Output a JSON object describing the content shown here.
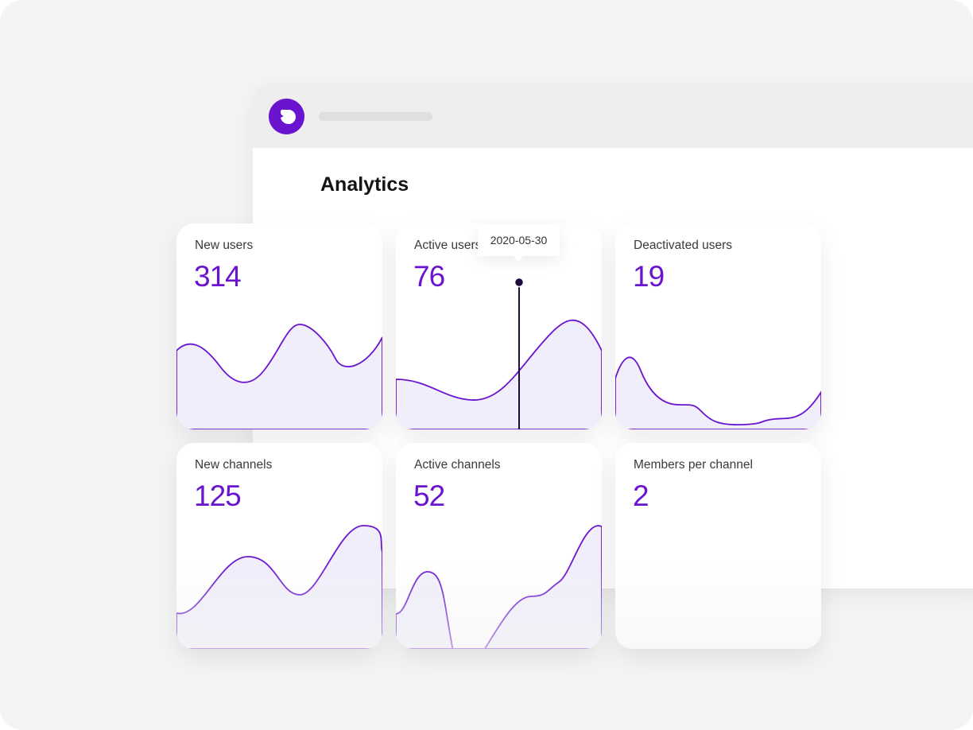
{
  "page": {
    "title": "Analytics"
  },
  "colors": {
    "accent": "#6a14d0",
    "fill": "#f0eefb",
    "marker": "#1e0a3c"
  },
  "cards": [
    {
      "label": "New users",
      "value": "314"
    },
    {
      "label": "Active users",
      "value": "76"
    },
    {
      "label": "Deactivated users",
      "value": "19"
    },
    {
      "label": "New channels",
      "value": "125"
    },
    {
      "label": "Active channels",
      "value": "52"
    },
    {
      "label": "Members per channel",
      "value": "2"
    }
  ],
  "tooltip": {
    "date": "2020-05-30"
  },
  "icons": {
    "logo": "app-logo-icon"
  }
}
